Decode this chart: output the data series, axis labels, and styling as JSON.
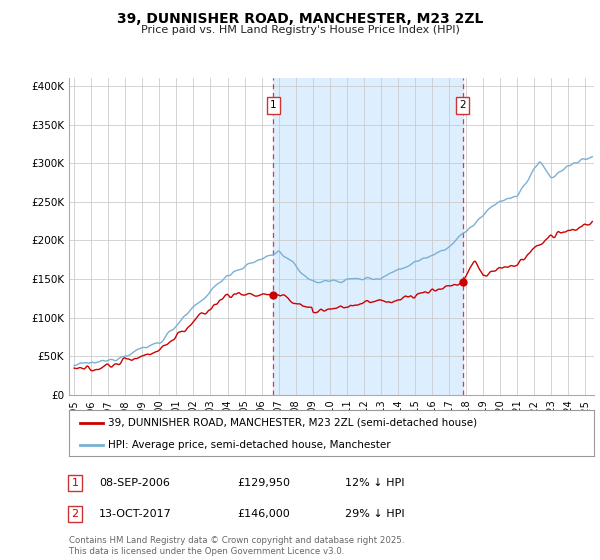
{
  "title": "39, DUNNISHER ROAD, MANCHESTER, M23 2ZL",
  "subtitle": "Price paid vs. HM Land Registry's House Price Index (HPI)",
  "ylabel_ticks": [
    "£0",
    "£50K",
    "£100K",
    "£150K",
    "£200K",
    "£250K",
    "£300K",
    "£350K",
    "£400K"
  ],
  "ytick_values": [
    0,
    50000,
    100000,
    150000,
    200000,
    250000,
    300000,
    350000,
    400000
  ],
  "ylim": [
    0,
    410000
  ],
  "xlim_start": 1994.7,
  "xlim_end": 2025.5,
  "red_line_color": "#cc0000",
  "blue_line_color": "#7ab0d4",
  "shade_color": "#ddeeff",
  "dashed_line_color": "#ee3333",
  "marker1_x": 2006.69,
  "marker2_x": 2017.79,
  "marker1_y": 129950,
  "marker2_y": 146000,
  "legend1": "39, DUNNISHER ROAD, MANCHESTER, M23 2ZL (semi-detached house)",
  "legend2": "HPI: Average price, semi-detached house, Manchester",
  "ann1_label": "1",
  "ann2_label": "2",
  "ann1_date": "08-SEP-2006",
  "ann1_price": "£129,950",
  "ann1_hpi": "12% ↓ HPI",
  "ann2_date": "13-OCT-2017",
  "ann2_price": "£146,000",
  "ann2_hpi": "29% ↓ HPI",
  "footer": "Contains HM Land Registry data © Crown copyright and database right 2025.\nThis data is licensed under the Open Government Licence v3.0.",
  "background_color": "#ffffff",
  "grid_color": "#cccccc",
  "xtick_years": [
    1995,
    1996,
    1997,
    1998,
    1999,
    2000,
    2001,
    2002,
    2003,
    2004,
    2005,
    2006,
    2007,
    2008,
    2009,
    2010,
    2011,
    2012,
    2013,
    2014,
    2015,
    2016,
    2017,
    2018,
    2019,
    2020,
    2021,
    2022,
    2023,
    2024,
    2025
  ]
}
